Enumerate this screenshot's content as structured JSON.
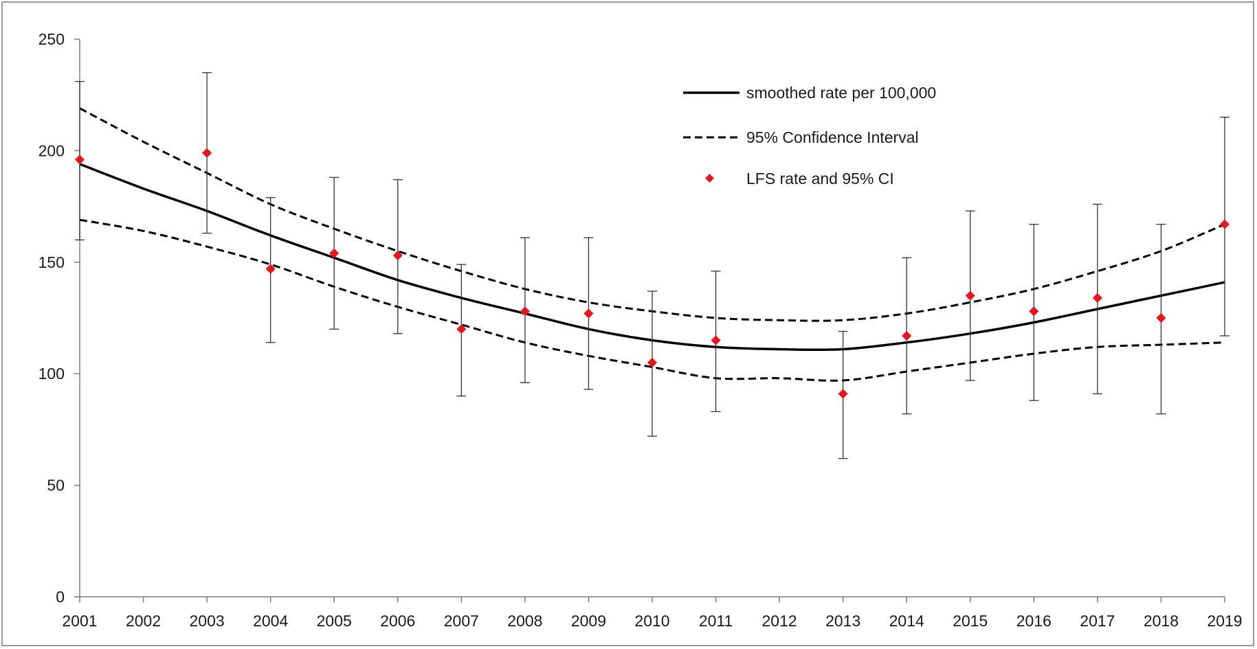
{
  "chart_data": {
    "type": "line",
    "title": "",
    "xlabel": "",
    "ylabel": "",
    "x": [
      2001,
      2002,
      2003,
      2004,
      2005,
      2006,
      2007,
      2008,
      2009,
      2010,
      2011,
      2012,
      2013,
      2014,
      2015,
      2016,
      2017,
      2018,
      2019
    ],
    "x_tick_labels": [
      "2001",
      "2002",
      "2003",
      "2004",
      "2005",
      "2006",
      "2007",
      "2008",
      "2009",
      "2010",
      "2011",
      "2012",
      "2013",
      "2014",
      "2015",
      "2016",
      "2017",
      "2018",
      "2019"
    ],
    "y_ticks": [
      0,
      50,
      100,
      150,
      200,
      250
    ],
    "y_tick_labels": [
      "0",
      "50",
      "100",
      "150",
      "200",
      "250"
    ],
    "ylim": [
      0,
      250
    ],
    "xlim": [
      2001,
      2019
    ],
    "grid": false,
    "legend_position": "top-right",
    "series": [
      {
        "name": "smoothed rate per 100,000",
        "style": "solid",
        "color": "#000000",
        "values": [
          194,
          183,
          173,
          162,
          152,
          142,
          134,
          127,
          120,
          115,
          112,
          111,
          111,
          114,
          118,
          123,
          129,
          135,
          141
        ]
      },
      {
        "name": "95% Confidence Interval",
        "style": "dashed",
        "color": "#000000",
        "upper": [
          219,
          204,
          190,
          176,
          165,
          155,
          146,
          138,
          132,
          128,
          125,
          124,
          124,
          127,
          132,
          138,
          146,
          155,
          167
        ],
        "lower": [
          169,
          164,
          157,
          149,
          139,
          130,
          122,
          114,
          108,
          103,
          98,
          98,
          97,
          101,
          105,
          109,
          112,
          113,
          114
        ]
      },
      {
        "name": "LFS rate and 95% CI",
        "style": "marker",
        "color": "#e8161c",
        "points": [
          {
            "x": 2001,
            "y": 196,
            "ci_low": 160,
            "ci_high": 231
          },
          {
            "x": 2003,
            "y": 199,
            "ci_low": 163,
            "ci_high": 235
          },
          {
            "x": 2004,
            "y": 147,
            "ci_low": 114,
            "ci_high": 179
          },
          {
            "x": 2005,
            "y": 154,
            "ci_low": 120,
            "ci_high": 188
          },
          {
            "x": 2006,
            "y": 153,
            "ci_low": 118,
            "ci_high": 187
          },
          {
            "x": 2007,
            "y": 120,
            "ci_low": 90,
            "ci_high": 149
          },
          {
            "x": 2008,
            "y": 128,
            "ci_low": 96,
            "ci_high": 161
          },
          {
            "x": 2009,
            "y": 127,
            "ci_low": 93,
            "ci_high": 161
          },
          {
            "x": 2010,
            "y": 105,
            "ci_low": 72,
            "ci_high": 137
          },
          {
            "x": 2011,
            "y": 115,
            "ci_low": 83,
            "ci_high": 146
          },
          {
            "x": 2013,
            "y": 91,
            "ci_low": 62,
            "ci_high": 119
          },
          {
            "x": 2014,
            "y": 117,
            "ci_low": 82,
            "ci_high": 152
          },
          {
            "x": 2015,
            "y": 135,
            "ci_low": 97,
            "ci_high": 173
          },
          {
            "x": 2016,
            "y": 128,
            "ci_low": 88,
            "ci_high": 167
          },
          {
            "x": 2017,
            "y": 134,
            "ci_low": 91,
            "ci_high": 176
          },
          {
            "x": 2018,
            "y": 125,
            "ci_low": 82,
            "ci_high": 167
          },
          {
            "x": 2019,
            "y": 167,
            "ci_low": 117,
            "ci_high": 215
          }
        ]
      }
    ]
  }
}
